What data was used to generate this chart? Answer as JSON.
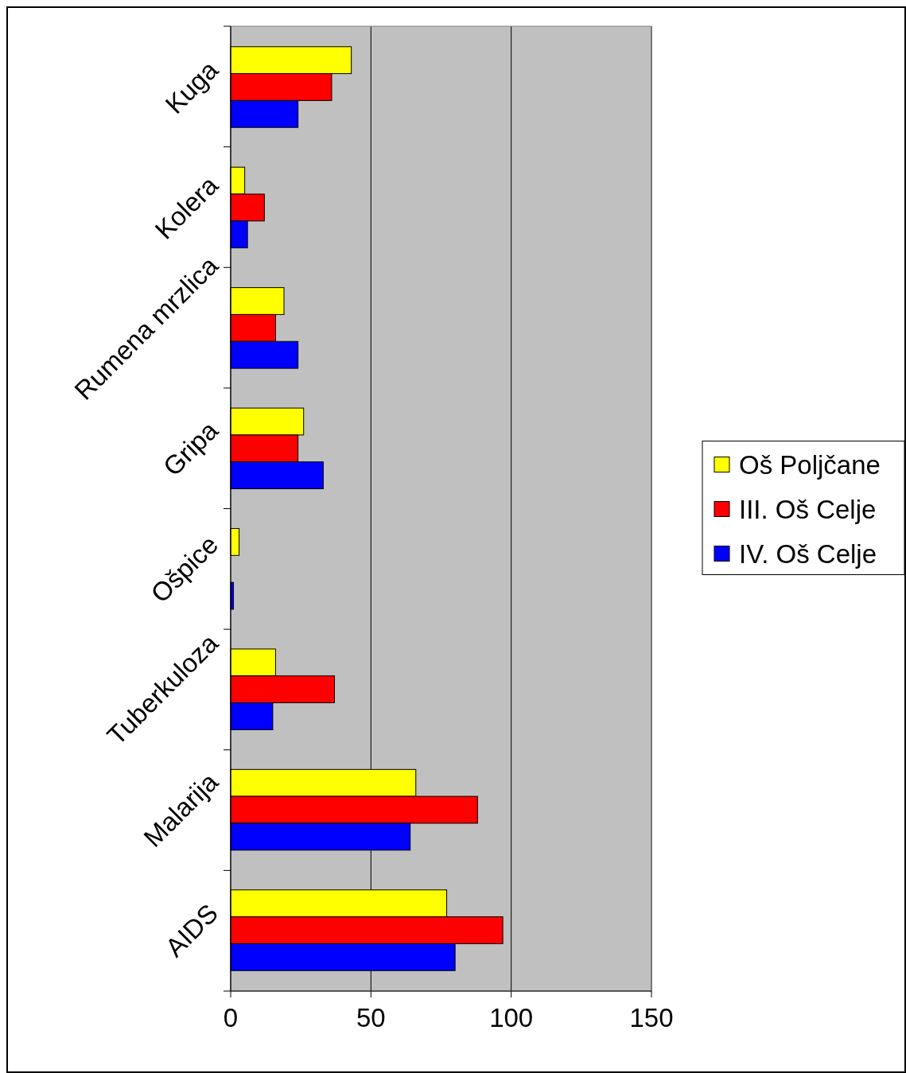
{
  "chart_data": {
    "type": "bar",
    "orientation": "horizontal",
    "categories": [
      "Kuga",
      "Kolera",
      "Rumena mrzlica",
      "Gripa",
      "Ošpice",
      "Tuberkuloza",
      "Malarija",
      "AIDS"
    ],
    "series": [
      {
        "name": "Oš Poljčane",
        "color": "#ffff00",
        "values": [
          43,
          5,
          19,
          26,
          3,
          16,
          66,
          77
        ]
      },
      {
        "name": "III. Oš Celje",
        "color": "#ff0000",
        "values": [
          36,
          12,
          16,
          24,
          null,
          37,
          88,
          97
        ]
      },
      {
        "name": "IV. Oš Celje",
        "color": "#0000ff",
        "values": [
          24,
          6,
          24,
          33,
          1,
          15,
          64,
          80
        ]
      }
    ],
    "xlim": [
      0,
      150
    ],
    "xticks": [
      0,
      50,
      100,
      150
    ],
    "grid": "x",
    "legend": "right"
  }
}
